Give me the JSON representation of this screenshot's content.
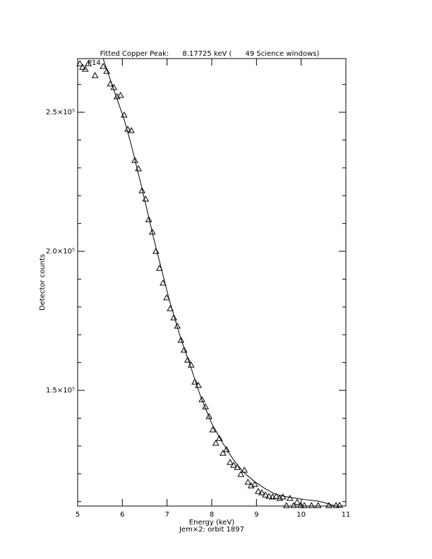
{
  "chart_data": {
    "type": "scatter",
    "title": "Fitted Copper Peak:      8.17725 keV (      49 Science windows)",
    "annotation": "P14",
    "x_label": "Energy (keV)",
    "subtitle": "Jem×2: orbit 1897",
    "y_label": "Detector counts",
    "xlim": [
      5,
      11
    ],
    "xticks": [
      5,
      6,
      7,
      8,
      9,
      10,
      11
    ],
    "ylim": [
      108400,
      269300
    ],
    "yticks": [
      {
        "value": 150000,
        "label": "1.5×10⁵"
      },
      {
        "value": 200000,
        "label": "2.0×10⁵"
      },
      {
        "value": 250000,
        "label": "2.5×10⁵"
      }
    ],
    "yminorticks": [
      110000,
      120000,
      130000,
      140000,
      160000,
      170000,
      180000,
      190000,
      210000,
      220000,
      230000,
      240000,
      260000
    ],
    "series": [
      {
        "marker": "triangle",
        "color": "#000000",
        "x": [
          5.05,
          5.11,
          5.17,
          5.24,
          5.39,
          5.57,
          5.65,
          5.73,
          5.81,
          5.88,
          5.96,
          6.04,
          6.12,
          6.2,
          6.28,
          6.36,
          6.44,
          6.52,
          6.59,
          6.67,
          6.75,
          6.83,
          6.91,
          6.99,
          7.07,
          7.15,
          7.23,
          7.31,
          7.38,
          7.46,
          7.54,
          7.62,
          7.7,
          7.78,
          7.86,
          7.94,
          8.02,
          8.09,
          8.17,
          8.25,
          8.33,
          8.41,
          8.49,
          8.57,
          8.65,
          8.73,
          8.81,
          8.88,
          8.96,
          9.04,
          9.12,
          9.2,
          9.28,
          9.36,
          9.44,
          9.52,
          9.59,
          9.67,
          9.75,
          9.83,
          9.91,
          9.99,
          10.07,
          10.23,
          10.38,
          10.62,
          10.78,
          10.86
        ],
        "values": [
          267500,
          266200,
          265500,
          267500,
          263200,
          266500,
          264700,
          260200,
          258900,
          255600,
          256100,
          249000,
          243900,
          243400,
          232700,
          229700,
          221800,
          218800,
          211400,
          206900,
          200000,
          193900,
          188600,
          183300,
          179400,
          176100,
          173100,
          168000,
          164500,
          160900,
          159100,
          153000,
          151800,
          146700,
          144100,
          140600,
          135800,
          131000,
          132700,
          127400,
          128700,
          124100,
          123100,
          122300,
          119800,
          121300,
          117000,
          115700,
          116200,
          113700,
          113200,
          112400,
          111900,
          111700,
          111900,
          111200,
          111700,
          108600,
          111200,
          108600,
          109800,
          108600,
          108600,
          108600,
          108600,
          108600,
          108600,
          108700
        ]
      },
      {
        "marker": "line",
        "color": "#000000",
        "x": [
          5.57,
          5.8,
          6.04,
          6.2,
          6.42,
          6.7,
          7.05,
          7.3,
          7.53,
          7.75,
          8.0,
          8.24,
          8.47,
          8.7,
          8.95,
          9.2,
          9.42,
          9.65,
          9.89,
          10.1,
          10.37,
          10.55,
          10.76
        ],
        "values": [
          269300,
          258500,
          247500,
          238200,
          223900,
          204700,
          182500,
          169000,
          158400,
          147800,
          138100,
          131200,
          125400,
          120700,
          117300,
          114600,
          112700,
          111800,
          111200,
          110700,
          110200,
          109500,
          108400
        ]
      }
    ]
  }
}
